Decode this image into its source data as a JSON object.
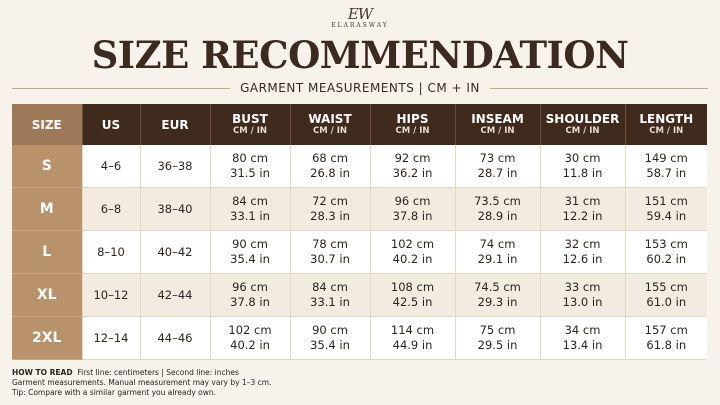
{
  "brand": {
    "mark": "EW",
    "name": "ELARASWAY"
  },
  "title": "SIZE RECOMMENDATION",
  "subtitle": "GARMENT MEASUREMENTS | CM + IN",
  "table": {
    "headers": [
      {
        "label": "SIZE",
        "sub": ""
      },
      {
        "label": "US",
        "sub": ""
      },
      {
        "label": "EUR",
        "sub": ""
      },
      {
        "label": "BUST",
        "sub": "CM / IN"
      },
      {
        "label": "WAIST",
        "sub": "CM / IN"
      },
      {
        "label": "HIPS",
        "sub": "CM / IN"
      },
      {
        "label": "INSEAM",
        "sub": "CM / IN"
      },
      {
        "label": "SHOULDER",
        "sub": "CM / IN"
      },
      {
        "label": "LENGTH",
        "sub": "CM / IN"
      }
    ],
    "rows": [
      {
        "size": "S",
        "us": "4–6",
        "eur": "36–38",
        "bust": [
          "80 cm",
          "31.5 in"
        ],
        "waist": [
          "68 cm",
          "26.8 in"
        ],
        "hips": [
          "92 cm",
          "36.2 in"
        ],
        "inseam": [
          "73 cm",
          "28.7 in"
        ],
        "shoulder": [
          "30 cm",
          "11.8 in"
        ],
        "length": [
          "149 cm",
          "58.7 in"
        ]
      },
      {
        "size": "M",
        "us": "6–8",
        "eur": "38–40",
        "bust": [
          "84 cm",
          "33.1 in"
        ],
        "waist": [
          "72 cm",
          "28.3 in"
        ],
        "hips": [
          "96 cm",
          "37.8 in"
        ],
        "inseam": [
          "73.5 cm",
          "28.9 in"
        ],
        "shoulder": [
          "31 cm",
          "12.2 in"
        ],
        "length": [
          "151 cm",
          "59.4 in"
        ]
      },
      {
        "size": "L",
        "us": "8–10",
        "eur": "40–42",
        "bust": [
          "90 cm",
          "35.4 in"
        ],
        "waist": [
          "78 cm",
          "30.7 in"
        ],
        "hips": [
          "102 cm",
          "40.2 in"
        ],
        "inseam": [
          "74 cm",
          "29.1 in"
        ],
        "shoulder": [
          "32 cm",
          "12.6 in"
        ],
        "length": [
          "153 cm",
          "60.2 in"
        ]
      },
      {
        "size": "XL",
        "us": "10–12",
        "eur": "42–44",
        "bust": [
          "96 cm",
          "37.8 in"
        ],
        "waist": [
          "84 cm",
          "33.1 in"
        ],
        "hips": [
          "108 cm",
          "42.5 in"
        ],
        "inseam": [
          "74.5 cm",
          "29.3 in"
        ],
        "shoulder": [
          "33 cm",
          "13.0 in"
        ],
        "length": [
          "155 cm",
          "61.0 in"
        ]
      },
      {
        "size": "2XL",
        "us": "12–14",
        "eur": "44–46",
        "bust": [
          "102 cm",
          "40.2 in"
        ],
        "waist": [
          "90 cm",
          "35.4 in"
        ],
        "hips": [
          "114 cm",
          "44.9 in"
        ],
        "inseam": [
          "75 cm",
          "29.5 in"
        ],
        "shoulder": [
          "34 cm",
          "13.4 in"
        ],
        "length": [
          "157 cm",
          "61.8 in"
        ]
      }
    ]
  },
  "notes": {
    "how_label": "HOW TO READ",
    "how_text": "First line: centimeters  |  Second line: inches",
    "line2": "Garment measurements. Manual measurement may vary by 1–3 cm.",
    "line3": "Tip: Compare with a similar garment you already own."
  },
  "colors": {
    "background": "#f7f2ea",
    "header_dark": "#40291d",
    "size_column": "#b8926b",
    "title": "#3b2a20",
    "row_alt": "#f3ebe0"
  }
}
